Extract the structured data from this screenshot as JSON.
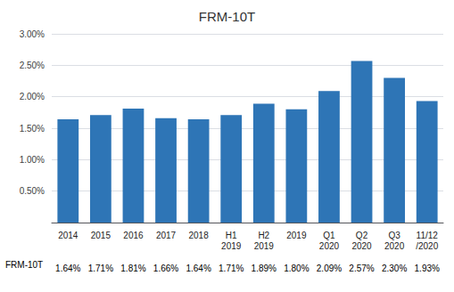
{
  "chart_data": {
    "type": "bar",
    "title": "FRM-10T",
    "categories": [
      "2014",
      "2015",
      "2016",
      "2017",
      "2018",
      "H1\n2019",
      "H2\n2019",
      "2019",
      "Q1\n2020",
      "Q2\n2020",
      "Q3\n2020",
      "11/12\n/2020"
    ],
    "values": [
      1.64,
      1.71,
      1.81,
      1.66,
      1.64,
      1.71,
      1.89,
      1.8,
      2.09,
      2.57,
      2.3,
      1.93
    ],
    "value_labels": [
      "1.64%",
      "1.71%",
      "1.81%",
      "1.66%",
      "1.64%",
      "1.71%",
      "1.89%",
      "1.80%",
      "2.09%",
      "2.57%",
      "2.30%",
      "1.93%"
    ],
    "data_labels": true,
    "color": "#2E75B6",
    "ylim": [
      0,
      3.0
    ],
    "yticks": [
      {
        "value": 0.5,
        "label": "0.50%"
      },
      {
        "value": 1.0,
        "label": "1.00%"
      },
      {
        "value": 1.5,
        "label": "1.50%"
      },
      {
        "value": 2.0,
        "label": "2.00%"
      },
      {
        "value": 2.5,
        "label": "2.50%"
      },
      {
        "value": 3.0,
        "label": "3.00%"
      }
    ],
    "grid": true,
    "annotations": [
      "FRM-10T"
    ]
  }
}
